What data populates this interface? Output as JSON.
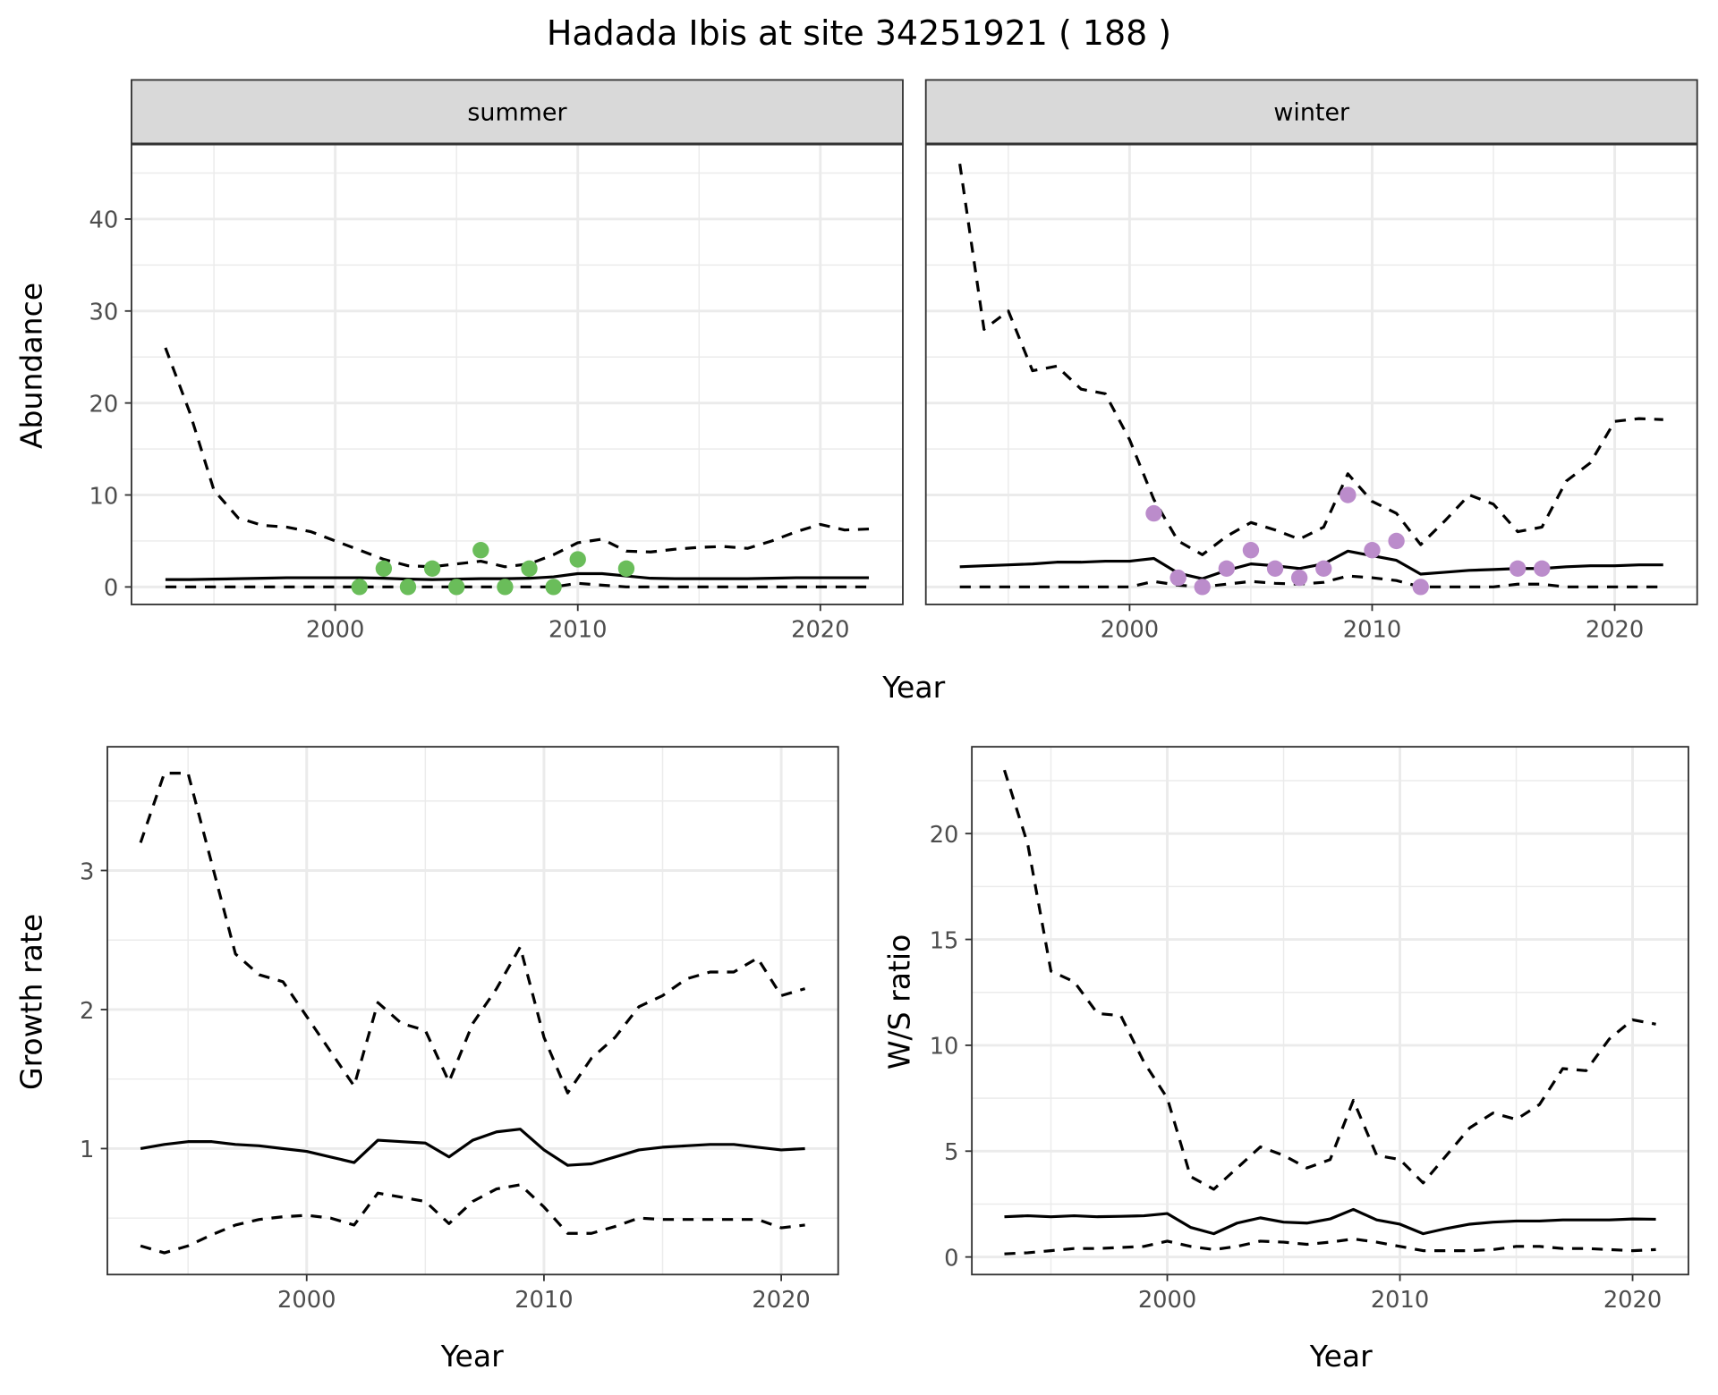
{
  "title": "Hadada Ibis at site 34251921 ( 188 )",
  "colors": {
    "summer_points": "#6abd5a",
    "winter_points": "#bb8ccb",
    "lines": "#000000",
    "grid": "#ebebeb",
    "strip": "#d9d9d9"
  },
  "chart_data": [
    {
      "type": "line",
      "facet": "summer",
      "xlabel": "Year",
      "ylabel": "Abundance",
      "xlim": [
        1991.6,
        2023.4
      ],
      "ylim": [
        -1.9,
        48.1
      ],
      "xticks": [
        "2000",
        "2010",
        "2020"
      ],
      "yticks": [
        "0",
        "10",
        "20",
        "30",
        "40"
      ],
      "grid": true,
      "x": [
        1993,
        1994,
        1995,
        1996,
        1997,
        1998,
        1999,
        2000,
        2001,
        2002,
        2003,
        2004,
        2005,
        2006,
        2007,
        2008,
        2009,
        2010,
        2011,
        2012,
        2013,
        2014,
        2015,
        2016,
        2017,
        2018,
        2019,
        2020,
        2021,
        2022
      ],
      "series": [
        {
          "style": "dashed",
          "values": [
            26,
            19,
            10.5,
            7.5,
            6.7,
            6.5,
            6,
            5,
            4,
            3,
            2.3,
            2.2,
            2.5,
            2.8,
            2.2,
            2.5,
            3.5,
            4.8,
            5.2,
            3.9,
            3.8,
            4.1,
            4.3,
            4.4,
            4.2,
            5,
            6,
            6.8,
            6.2,
            6.3
          ]
        },
        {
          "style": "solid",
          "values": [
            0.8,
            0.8,
            0.85,
            0.9,
            0.95,
            1,
            1,
            1,
            1,
            0.95,
            0.85,
            0.8,
            0.85,
            0.9,
            0.9,
            0.95,
            1.1,
            1.45,
            1.45,
            1.2,
            0.95,
            0.9,
            0.9,
            0.9,
            0.9,
            0.95,
            1,
            1,
            1,
            1
          ]
        },
        {
          "style": "dashed",
          "values": [
            0,
            0,
            0,
            0,
            0,
            0,
            0,
            0,
            0,
            0,
            0,
            0,
            0,
            0,
            0,
            0,
            0,
            0.4,
            0.2,
            0,
            0,
            0,
            0,
            0,
            0,
            0,
            0,
            0,
            0,
            0
          ]
        }
      ],
      "points": {
        "x": [
          2001,
          2002,
          2003,
          2004,
          2005,
          2006,
          2007,
          2008,
          2009,
          2010,
          2012
        ],
        "y": [
          0,
          2,
          0,
          2,
          0,
          4,
          0,
          2,
          0,
          3,
          2
        ]
      }
    },
    {
      "type": "line",
      "facet": "winter",
      "xlabel": "Year",
      "ylabel": "Abundance",
      "xlim": [
        1991.6,
        2023.4
      ],
      "ylim": [
        -1.9,
        48.1
      ],
      "xticks": [
        "2000",
        "2010",
        "2020"
      ],
      "yticks": [
        "0",
        "10",
        "20",
        "30",
        "40"
      ],
      "grid": true,
      "x": [
        1993,
        1994,
        1995,
        1996,
        1997,
        1998,
        1999,
        2000,
        2001,
        2002,
        2003,
        2004,
        2005,
        2006,
        2007,
        2008,
        2009,
        2010,
        2011,
        2012,
        2013,
        2014,
        2015,
        2016,
        2017,
        2018,
        2019,
        2020,
        2021,
        2022
      ],
      "series": [
        {
          "style": "dashed",
          "values": [
            46,
            28,
            30,
            23.5,
            24,
            21.5,
            21,
            16,
            9.5,
            5,
            3.5,
            5.5,
            7,
            6.2,
            5.2,
            6.5,
            12.3,
            9.3,
            8,
            4.6,
            7.2,
            10,
            9,
            6,
            6.5,
            11.5,
            13.5,
            18,
            18.3,
            18.2
          ]
        },
        {
          "style": "solid",
          "values": [
            2.2,
            2.3,
            2.4,
            2.5,
            2.7,
            2.7,
            2.8,
            2.8,
            3.1,
            1.5,
            0.9,
            1.8,
            2.5,
            2.3,
            2,
            2.5,
            3.9,
            3.4,
            2.9,
            1.4,
            1.6,
            1.8,
            1.9,
            2,
            2,
            2.2,
            2.3,
            2.3,
            2.4,
            2.4
          ]
        },
        {
          "style": "dashed",
          "values": [
            0,
            0,
            0,
            0,
            0,
            0,
            0,
            0,
            0.6,
            0.2,
            0,
            0.3,
            0.6,
            0.4,
            0.3,
            0.5,
            1.2,
            1,
            0.7,
            0,
            0,
            0,
            0,
            0.3,
            0.3,
            0,
            0,
            0,
            0,
            0
          ]
        }
      ],
      "points": {
        "x": [
          2001,
          2002,
          2003,
          2004,
          2005,
          2006,
          2007,
          2008,
          2009,
          2010,
          2011,
          2012,
          2016,
          2017
        ],
        "y": [
          8,
          1,
          0,
          2,
          4,
          2,
          1,
          2,
          10,
          4,
          5,
          0,
          2,
          2
        ]
      }
    },
    {
      "type": "line",
      "xlabel": "Year",
      "ylabel": "Growth rate",
      "xlim": [
        1991.6,
        2022.4
      ],
      "ylim": [
        0.094,
        3.89
      ],
      "xticks": [
        "2000",
        "2010",
        "2020"
      ],
      "yticks": [
        "1",
        "2",
        "3"
      ],
      "grid": true,
      "x": [
        1993,
        1994,
        1995,
        1996,
        1997,
        1998,
        1999,
        2000,
        2001,
        2002,
        2003,
        2004,
        2005,
        2006,
        2007,
        2008,
        2009,
        2010,
        2011,
        2012,
        2013,
        2014,
        2015,
        2016,
        2017,
        2018,
        2019,
        2020,
        2021
      ],
      "series": [
        {
          "style": "dashed",
          "values": [
            3.2,
            3.7,
            3.7,
            3.05,
            2.4,
            2.25,
            2.2,
            1.95,
            1.7,
            1.45,
            2.05,
            1.9,
            1.85,
            1.48,
            1.9,
            2.15,
            2.45,
            1.8,
            1.4,
            1.65,
            1.8,
            2.02,
            2.1,
            2.22,
            2.27,
            2.27,
            2.37,
            2.1,
            2.15
          ]
        },
        {
          "style": "solid",
          "values": [
            1,
            1.03,
            1.05,
            1.05,
            1.03,
            1.02,
            1,
            0.98,
            0.94,
            0.9,
            1.06,
            1.05,
            1.04,
            0.94,
            1.06,
            1.12,
            1.14,
            0.99,
            0.88,
            0.89,
            0.94,
            0.99,
            1.01,
            1.02,
            1.03,
            1.03,
            1.01,
            0.99,
            1
          ]
        },
        {
          "style": "dashed",
          "values": [
            0.3,
            0.25,
            0.3,
            0.38,
            0.45,
            0.49,
            0.51,
            0.52,
            0.5,
            0.45,
            0.68,
            0.65,
            0.62,
            0.46,
            0.62,
            0.71,
            0.74,
            0.58,
            0.39,
            0.39,
            0.44,
            0.5,
            0.49,
            0.49,
            0.49,
            0.49,
            0.49,
            0.43,
            0.45
          ]
        }
      ]
    },
    {
      "type": "line",
      "xlabel": "Year",
      "ylabel": "W/S ratio",
      "xlim": [
        1991.6,
        2022.4
      ],
      "ylim": [
        -0.83,
        24.1
      ],
      "xticks": [
        "2000",
        "2010",
        "2020"
      ],
      "yticks": [
        "0",
        "5",
        "10",
        "15",
        "20"
      ],
      "grid": true,
      "x": [
        1993,
        1994,
        1995,
        1996,
        1997,
        1998,
        1999,
        2000,
        2001,
        2002,
        2003,
        2004,
        2005,
        2006,
        2007,
        2008,
        2009,
        2010,
        2011,
        2012,
        2013,
        2014,
        2015,
        2016,
        2017,
        2018,
        2019,
        2020,
        2021
      ],
      "series": [
        {
          "style": "dashed",
          "values": [
            23,
            19.5,
            13.5,
            13,
            11.5,
            11.4,
            9.2,
            7.5,
            3.8,
            3.2,
            4.2,
            5.2,
            4.8,
            4.2,
            4.6,
            7.4,
            4.8,
            4.6,
            3.5,
            4.8,
            6.1,
            6.8,
            6.5,
            7.2,
            8.9,
            8.8,
            10.3,
            11.2,
            11
          ]
        },
        {
          "style": "solid",
          "values": [
            1.9,
            1.95,
            1.9,
            1.95,
            1.9,
            1.92,
            1.95,
            2.05,
            1.4,
            1.1,
            1.6,
            1.85,
            1.65,
            1.6,
            1.8,
            2.25,
            1.75,
            1.55,
            1.1,
            1.35,
            1.55,
            1.65,
            1.7,
            1.7,
            1.75,
            1.75,
            1.75,
            1.8,
            1.78
          ]
        },
        {
          "style": "dashed",
          "values": [
            0.15,
            0.2,
            0.3,
            0.4,
            0.4,
            0.45,
            0.5,
            0.75,
            0.5,
            0.35,
            0.5,
            0.75,
            0.7,
            0.6,
            0.7,
            0.85,
            0.7,
            0.5,
            0.3,
            0.3,
            0.3,
            0.35,
            0.5,
            0.5,
            0.4,
            0.4,
            0.35,
            0.3,
            0.35
          ]
        }
      ]
    }
  ]
}
